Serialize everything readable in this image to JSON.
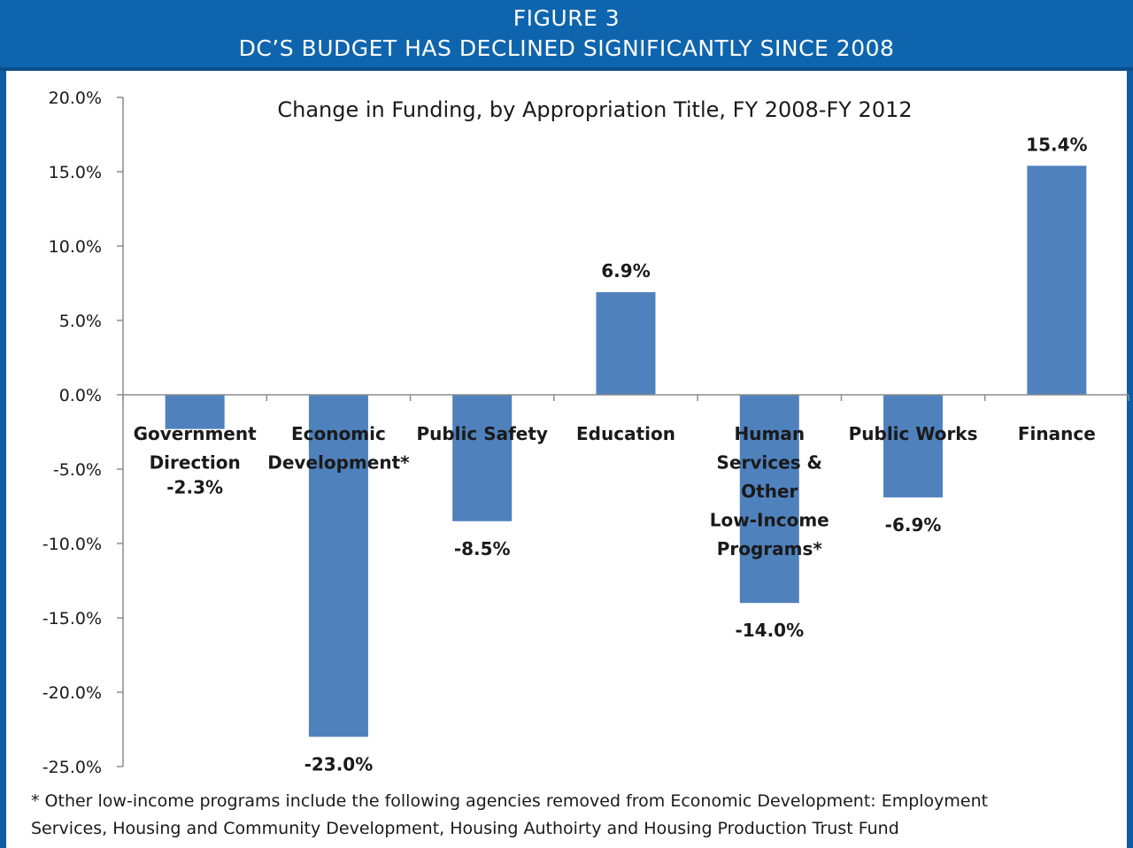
{
  "banner": {
    "line1": "FIGURE 3",
    "line2": "DC’S BUDGET HAS DECLINED SIGNIFICANTLY SINCE 2008"
  },
  "colors": {
    "banner": "#0f65ad",
    "bar": "#4f81bd",
    "axis": "#8c8c8c",
    "text": "#1a1a1a"
  },
  "chart_data": {
    "type": "bar",
    "title": "Change in Funding, by Appropriation Title, FY 2008-FY 2012",
    "xlabel": "",
    "ylabel": "",
    "ylim": [
      -25,
      20
    ],
    "yticks": [
      20,
      15,
      10,
      5,
      0,
      -5,
      -10,
      -15,
      -20,
      -25
    ],
    "ytick_labels": [
      "20.0%",
      "15.0%",
      "10.0%",
      "5.0%",
      "0.0%",
      "-5.0%",
      "-10.0%",
      "-15.0%",
      "-20.0%",
      "-25.0%"
    ],
    "grid": false,
    "legend": "none",
    "categories": [
      [
        "Government",
        "Direction"
      ],
      [
        "Economic",
        "Development*"
      ],
      [
        "Public Safety"
      ],
      [
        "Education"
      ],
      [
        "Human",
        "Services &",
        "Other",
        "Low-Income",
        "Programs*"
      ],
      [
        "Public Works"
      ],
      [
        "Finance"
      ]
    ],
    "values": [
      -2.3,
      -23.0,
      -8.5,
      6.9,
      -14.0,
      -6.9,
      15.4
    ],
    "data_labels": [
      "-2.3%",
      "-23.0%",
      "-8.5%",
      "6.9%",
      "-14.0%",
      "-6.9%",
      "15.4%"
    ]
  },
  "footnote": {
    "line1": "* Other low-income programs include the following agencies removed from Economic Development: Employment",
    "line2": "Services, Housing and Community Development, Housing Authoirty and Housing Production Trust Fund"
  }
}
